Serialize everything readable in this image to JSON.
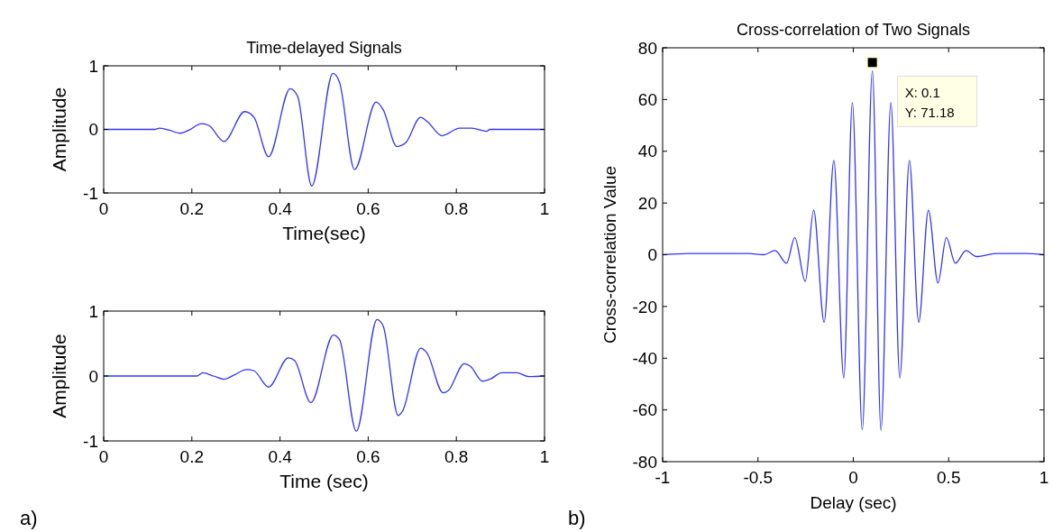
{
  "chart_data": [
    {
      "type": "line",
      "title": "Time-delayed Signals",
      "xlabel": "Time(sec)",
      "ylabel": "Amplitude",
      "xlim": [
        0,
        1
      ],
      "ylim": [
        -1,
        1
      ],
      "xticks": [
        0,
        0.2,
        0.4,
        0.6,
        0.8,
        1
      ],
      "yticks": [
        -1,
        0,
        1
      ],
      "series": [
        {
          "color": "#3333ff",
          "x": [
            0,
            0.116,
            0.126,
            0.147,
            0.174,
            0.194,
            0.222,
            0.239,
            0.273,
            0.32,
            0.341,
            0.374,
            0.423,
            0.44,
            0.472,
            0.52,
            0.535,
            0.569,
            0.618,
            0.634,
            0.665,
            0.685,
            0.719,
            0.736,
            0.767,
            0.808,
            0.835,
            0.869,
            0.876,
            1
          ],
          "values": [
            0,
            0,
            0.02,
            -0.01,
            -0.06,
            -0.01,
            0.09,
            0.06,
            -0.19,
            0.28,
            0.19,
            -0.43,
            0.64,
            0.52,
            -0.89,
            0.88,
            0.74,
            -0.63,
            0.43,
            0.31,
            -0.27,
            -0.21,
            0.19,
            0.11,
            -0.1,
            0.02,
            0.02,
            -0.03,
            0,
            0
          ]
        }
      ]
    },
    {
      "type": "line",
      "xlabel": "Time (sec)",
      "ylabel": "Amplitude",
      "xlim": [
        0,
        1
      ],
      "ylim": [
        -1,
        1
      ],
      "xticks": [
        0,
        0.2,
        0.4,
        0.6,
        0.8,
        1
      ],
      "yticks": [
        -1,
        0,
        1
      ],
      "annotations": [
        "a)"
      ],
      "series": [
        {
          "color": "#3333ff",
          "x": [
            0,
            0.211,
            0.225,
            0.249,
            0.273,
            0.297,
            0.324,
            0.341,
            0.374,
            0.419,
            0.433,
            0.47,
            0.521,
            0.535,
            0.573,
            0.62,
            0.634,
            0.668,
            0.678,
            0.719,
            0.733,
            0.77,
            0.781,
            0.818,
            0.832,
            0.859,
            0.879,
            0.903,
            0.937,
            0.965,
            1
          ],
          "values": [
            0,
            0,
            0.05,
            0,
            -0.05,
            0.02,
            0.1,
            0.08,
            -0.17,
            0.28,
            0.24,
            -0.41,
            0.63,
            0.56,
            -0.85,
            0.87,
            0.77,
            -0.61,
            -0.54,
            0.43,
            0.36,
            -0.26,
            -0.23,
            0.19,
            0.15,
            -0.08,
            -0.04,
            0.05,
            0.05,
            -0.01,
            0
          ]
        }
      ]
    },
    {
      "type": "line",
      "title": "Cross-correlation of Two Signals",
      "xlabel": "Delay (sec)",
      "ylabel": "Cross-correlation Value",
      "xlim": [
        -1,
        1
      ],
      "ylim": [
        -80,
        80
      ],
      "xticks": [
        -1,
        -0.5,
        0,
        0.5,
        1
      ],
      "yticks": [
        -80,
        -60,
        -40,
        -20,
        0,
        20,
        40,
        60,
        80
      ],
      "annotations": [
        "b)",
        {
          "text": "X: 0.1\nY: 71.18",
          "x": 0.1,
          "y": 71.18
        }
      ],
      "series": [
        {
          "color": "#3333ff",
          "x": [
            -1,
            -0.85,
            -0.7,
            -0.55,
            -0.47,
            -0.41,
            -0.35,
            -0.307,
            -0.252,
            -0.208,
            -0.153,
            -0.102,
            -0.05,
            -0.005,
            0.047,
            0.1,
            0.145,
            0.197,
            0.244,
            0.294,
            0.343,
            0.394,
            0.444,
            0.488,
            0.535,
            0.591,
            0.646,
            0.75,
            0.9,
            1
          ],
          "values": [
            0,
            0.5,
            0.5,
            0.5,
            0,
            1.6,
            -3.3,
            6.7,
            -10.3,
            17.2,
            -26.1,
            36.5,
            -47.7,
            58.9,
            -67.6,
            71.18,
            -67.8,
            58.9,
            -47.7,
            36.5,
            -26.1,
            17.2,
            -10.9,
            6.7,
            -3.3,
            1.6,
            -0.7,
            0.5,
            0.5,
            0
          ]
        }
      ]
    }
  ]
}
